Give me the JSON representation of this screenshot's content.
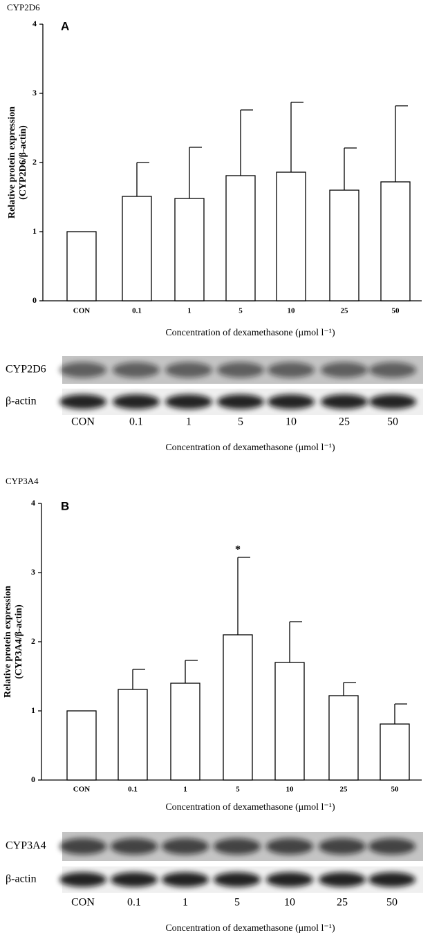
{
  "chart_data": [
    {
      "type": "bar",
      "title": "CYP2D6",
      "panel": "A",
      "ylabel": [
        "Relative protein expression",
        "(CYP2D6/β-actin)"
      ],
      "xlabel": "Concentration of dexamethasone (μmol l⁻¹)",
      "categories": [
        "CON",
        "0.1",
        "1",
        "5",
        "10",
        "25",
        "50"
      ],
      "values": [
        1.0,
        1.51,
        1.48,
        1.81,
        1.86,
        1.6,
        1.72
      ],
      "errors": [
        null,
        0.49,
        0.74,
        0.95,
        1.01,
        0.61,
        1.1
      ],
      "color": "#ffffff",
      "ylim": [
        0,
        4
      ],
      "yticks": [
        0,
        1,
        2,
        3,
        4
      ],
      "grid": false
    },
    {
      "type": "bar",
      "title": "CYP3A4",
      "panel": "B",
      "ylabel": [
        "Relative protein expression",
        "(CYP3A4/β-actin)"
      ],
      "xlabel": "Concentration of dexamethasone (μmol l⁻¹)",
      "categories": [
        "CON",
        "0.1",
        "1",
        "5",
        "10",
        "25",
        "50"
      ],
      "values": [
        1.0,
        1.31,
        1.4,
        2.1,
        1.7,
        1.22,
        0.81
      ],
      "errors": [
        null,
        0.29,
        0.33,
        1.12,
        0.59,
        0.19,
        0.29
      ],
      "annotations": [
        {
          "text": "*",
          "category": "5"
        }
      ],
      "color": "#ffffff",
      "ylim": [
        0,
        4
      ],
      "yticks": [
        0,
        1,
        2,
        3,
        4
      ],
      "grid": false
    }
  ],
  "blots": [
    {
      "rows": [
        "CYP2D6",
        "β-actin"
      ],
      "lanes": [
        "CON",
        "0.1",
        "1",
        "5",
        "10",
        "25",
        "50"
      ],
      "xlabel": "Concentration of dexamethasone (μmol l⁻¹)"
    },
    {
      "rows": [
        "CYP3A4",
        "β-actin"
      ],
      "lanes": [
        "CON",
        "0.1",
        "1",
        "5",
        "10",
        "25",
        "50"
      ],
      "xlabel": "Concentration of dexamethasone (μmol l⁻¹)"
    }
  ]
}
